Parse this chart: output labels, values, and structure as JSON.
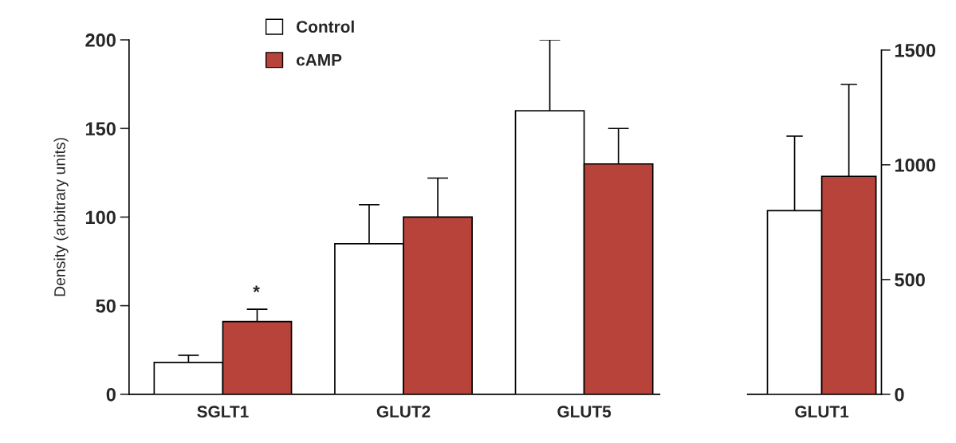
{
  "chart_data": [
    {
      "type": "bar",
      "ylabel": "Density (arbitrary units)",
      "categories": [
        "SGLT1",
        "GLUT2",
        "GLUT5"
      ],
      "series": [
        {
          "name": "Control",
          "color": "#ffffff",
          "values": [
            18,
            85,
            160
          ],
          "errors": [
            [
              18,
              22
            ],
            [
              85,
              107
            ],
            [
              160,
              200
            ]
          ]
        },
        {
          "name": "cAMP",
          "color": "#b8433a",
          "values": [
            41,
            100,
            130
          ],
          "errors": [
            [
              41,
              48
            ],
            [
              100,
              122
            ],
            [
              130,
              150
            ]
          ]
        }
      ],
      "ylim": [
        0,
        200
      ],
      "yticks": [
        0,
        50,
        100,
        150,
        200
      ],
      "legend": "top left",
      "annotations": [
        "*"
      ]
    },
    {
      "type": "bar",
      "categories": [
        "GLUT1"
      ],
      "series": [
        {
          "color": "#ffffff",
          "values": [
            800
          ],
          "errors": [
            [
              800,
              1125
            ]
          ],
          "axis": "y2"
        },
        {
          "color": "#b8433a",
          "values": [
            950
          ],
          "errors": [
            [
              950,
              1350
            ]
          ],
          "axis": "y2"
        }
      ],
      "y2lim": [
        0,
        1500
      ],
      "y2ticks": [
        0,
        500,
        1000,
        1500
      ]
    }
  ]
}
